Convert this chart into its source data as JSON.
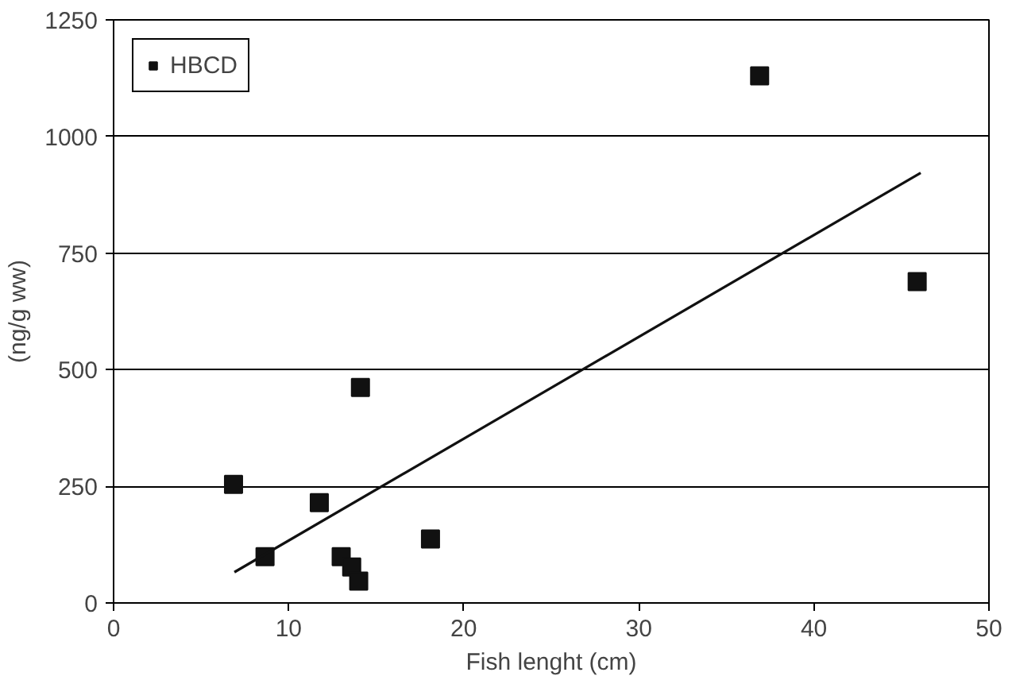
{
  "chart_data": {
    "type": "scatter",
    "xlabel": "Fish lenght (cm)",
    "ylabel": "(ng/g ww)",
    "xlim": [
      0,
      50
    ],
    "ylim": [
      0,
      1250
    ],
    "xticks": [
      0,
      10,
      20,
      30,
      40,
      50
    ],
    "yticks": [
      0,
      250,
      500,
      750,
      1000,
      1250
    ],
    "grid": "y",
    "legend": "top left",
    "series": [
      {
        "name": "HBCD",
        "color": "#111111",
        "marker": "square",
        "x": [
          6.85,
          8.65,
          11.75,
          13.0,
          13.6,
          14.0,
          14.1,
          18.1,
          36.9,
          45.9
        ],
        "values": [
          254,
          99,
          215,
          99,
          77,
          47,
          462,
          137,
          1130,
          689
        ]
      },
      {
        "type": "line",
        "color": "#111111",
        "marker": "none",
        "x": [
          6.9,
          46.1
        ],
        "values": [
          66,
          922
        ]
      }
    ]
  }
}
